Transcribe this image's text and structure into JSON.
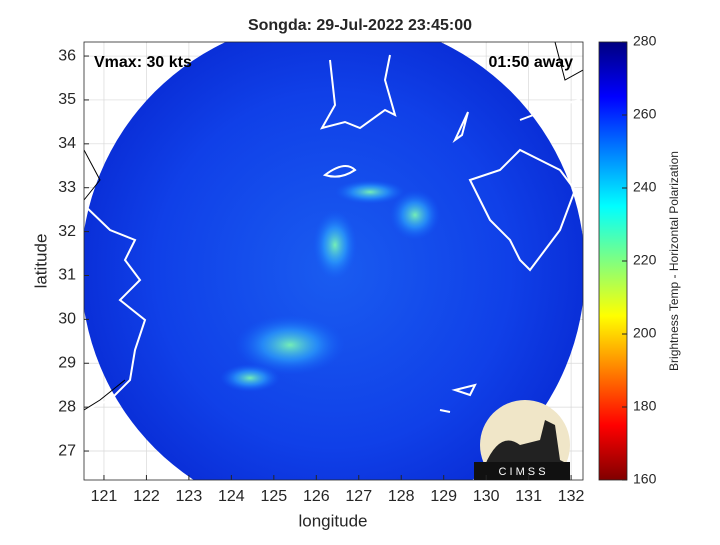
{
  "chart_data": {
    "type": "map",
    "title": "Songda: 29-Jul-2022 23:45:00",
    "xlabel": "longitude",
    "ylabel": "latitude",
    "xlim": [
      120.53,
      132.28
    ],
    "ylim": [
      26.34,
      36.32
    ],
    "xticks": [
      121,
      122,
      123,
      124,
      125,
      126,
      127,
      128,
      129,
      130,
      131,
      132
    ],
    "yticks": [
      27,
      28,
      29,
      30,
      31,
      32,
      33,
      34,
      35,
      36
    ],
    "grid": true,
    "annotations": [
      "Vmax: 30 kts",
      "01:50 away"
    ],
    "logo_text": "C I M S S",
    "colorbar": {
      "label": "Brightness Temp - Horizontal Polarization",
      "clim": [
        160,
        280
      ],
      "ticks": [
        160,
        180,
        200,
        220,
        240,
        260,
        280
      ],
      "colormap": [
        "#800000",
        "#ff0000",
        "#ff8000",
        "#ffff00",
        "#80ff80",
        "#00ffff",
        "#0080ff",
        "#0000ff",
        "#000080"
      ]
    }
  }
}
